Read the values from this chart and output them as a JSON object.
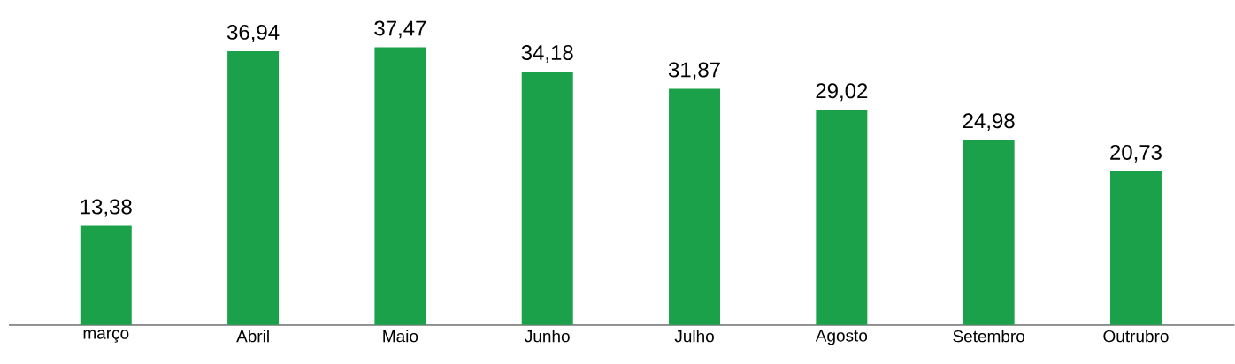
{
  "chart_data": {
    "type": "bar",
    "categories": [
      "março",
      "Abril",
      "Maio",
      "Junho",
      "Julho",
      "Agosto",
      "Setembro",
      "Outrubro"
    ],
    "values": [
      13.38,
      36.94,
      37.47,
      34.18,
      31.87,
      29.02,
      24.98,
      20.73
    ],
    "value_labels": [
      "13,38",
      "36,94",
      "37,47",
      "34,18",
      "31,87",
      "29,02",
      "24,98",
      "20,73"
    ],
    "color": "#1ba14a"
  }
}
